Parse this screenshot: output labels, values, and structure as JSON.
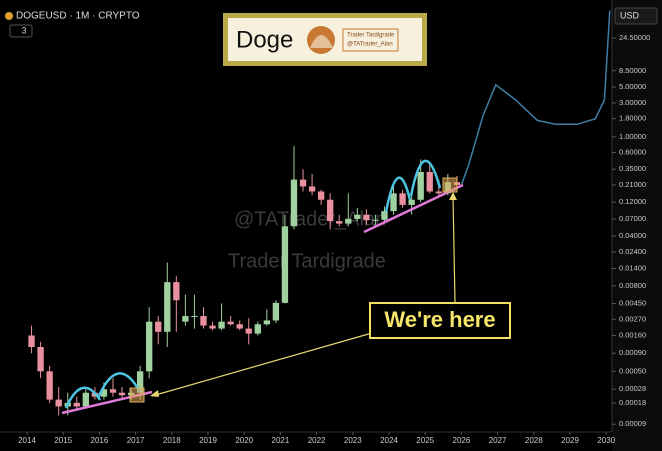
{
  "chart_data": {
    "type": "candlestick",
    "symbol": "DOGEUSD · 1M · CRYPTO",
    "indicator_count": 3,
    "currency": "USD",
    "logo": {
      "name": "Doge",
      "line1": "Trader Tardigrade",
      "line2": "@TATrader_Alan"
    },
    "annotations": {
      "callout": "We're here",
      "watermark_handle": "@TATrader_Alan",
      "watermark_name": "Trader Tardigrade"
    },
    "log_scale": true,
    "up_color": "#9fd29f",
    "down_color": "#e8909e",
    "x": [
      2014.125,
      2014.375,
      2014.625,
      2014.875,
      2015.125,
      2015.375,
      2015.625,
      2015.875,
      2016.125,
      2016.375,
      2016.625,
      2016.875,
      2017.125,
      2017.375,
      2017.625,
      2017.875,
      2018.125,
      2018.375,
      2018.625,
      2018.875,
      2019.125,
      2019.375,
      2019.625,
      2019.875,
      2020.125,
      2020.375,
      2020.625,
      2020.875,
      2021.125,
      2021.375,
      2021.625,
      2021.875,
      2022.125,
      2022.375,
      2022.625,
      2022.875,
      2023.125,
      2023.375,
      2023.625,
      2023.875,
      2024.125,
      2024.375,
      2024.625,
      2024.875,
      2025.125,
      2025.375,
      2025.625,
      2025.875
    ],
    "open": [
      0.0016,
      0.0011,
      0.0005,
      0.0002,
      0.00016,
      0.00018,
      0.00016,
      0.00025,
      0.00022,
      0.00028,
      0.00025,
      0.00023,
      0.00025,
      0.0005,
      0.0025,
      0.0018,
      0.009,
      0.0025,
      0.003,
      0.003,
      0.0022,
      0.002,
      0.0025,
      0.0023,
      0.002,
      0.0017,
      0.0023,
      0.0026,
      0.0046,
      0.055,
      0.25,
      0.2,
      0.17,
      0.13,
      0.065,
      0.06,
      0.07,
      0.08,
      0.067,
      0.068,
      0.09,
      0.16,
      0.11,
      0.13,
      0.32,
      0.17,
      0.16,
      0.23
    ],
    "high": [
      0.0022,
      0.0013,
      0.0006,
      0.0003,
      0.00025,
      0.00022,
      0.0003,
      0.0003,
      0.00035,
      0.0004,
      0.0003,
      0.00028,
      0.0006,
      0.004,
      0.003,
      0.017,
      0.011,
      0.006,
      0.006,
      0.004,
      0.0025,
      0.0045,
      0.003,
      0.0026,
      0.0028,
      0.0025,
      0.0037,
      0.005,
      0.08,
      0.74,
      0.35,
      0.3,
      0.18,
      0.16,
      0.08,
      0.16,
      0.1,
      0.095,
      0.08,
      0.105,
      0.23,
      0.18,
      0.15,
      0.48,
      0.43,
      0.25,
      0.3,
      0.28
    ],
    "low": [
      0.0009,
      0.0004,
      0.00018,
      0.00012,
      0.00012,
      0.00014,
      0.00015,
      0.0002,
      0.0002,
      0.00022,
      0.0002,
      0.0002,
      0.0002,
      0.0004,
      0.0012,
      0.0011,
      0.0018,
      0.0022,
      0.002,
      0.002,
      0.0019,
      0.0019,
      0.0022,
      0.0019,
      0.0012,
      0.0016,
      0.0022,
      0.0024,
      0.0045,
      0.05,
      0.17,
      0.15,
      0.11,
      0.05,
      0.055,
      0.055,
      0.065,
      0.057,
      0.055,
      0.06,
      0.08,
      0.1,
      0.08,
      0.12,
      0.16,
      0.14,
      0.15,
      0.18
    ],
    "close": [
      0.0011,
      0.0005,
      0.0002,
      0.00016,
      0.00018,
      0.00016,
      0.00025,
      0.00022,
      0.00028,
      0.00025,
      0.00023,
      0.00025,
      0.0005,
      0.0025,
      0.0018,
      0.009,
      0.005,
      0.003,
      0.003,
      0.0022,
      0.002,
      0.0025,
      0.0023,
      0.002,
      0.0017,
      0.0023,
      0.0026,
      0.0046,
      0.055,
      0.25,
      0.2,
      0.17,
      0.13,
      0.065,
      0.06,
      0.07,
      0.08,
      0.067,
      0.068,
      0.09,
      0.16,
      0.11,
      0.13,
      0.32,
      0.17,
      0.16,
      0.23,
      0.21
    ],
    "projection": {
      "color": "#3f7ea6",
      "x": [
        2026.0,
        2026.2,
        2026.6,
        2026.95,
        2027.5,
        2028.1,
        2028.6,
        2029.2,
        2029.7,
        2029.95,
        2030.1
      ],
      "values": [
        0.21,
        0.4,
        2.0,
        5.4,
        3.3,
        1.7,
        1.5,
        1.5,
        1.8,
        3.3,
        60
      ]
    },
    "xlim": [
      2013.53,
      2030.16
    ],
    "xticks": [
      2014,
      2015,
      2016,
      2017,
      2018,
      2019,
      2020,
      2021,
      2022,
      2023,
      2024,
      2025,
      2026,
      2027,
      2028,
      2029,
      2030
    ],
    "ylim": [
      5.4e-05,
      65
    ],
    "yticks": [
      {
        "value": 24.5,
        "label": "24.50000"
      },
      {
        "value": 8.5,
        "label": "8.50000"
      },
      {
        "value": 5,
        "label": "5.00000"
      },
      {
        "value": 3,
        "label": "3.00000"
      },
      {
        "value": 1.8,
        "label": "1.80000"
      },
      {
        "value": 1,
        "label": "1.00000"
      },
      {
        "value": 0.6,
        "label": "0.60000"
      },
      {
        "value": 0.35,
        "label": "0.35000"
      },
      {
        "value": 0.21,
        "label": "0.21000"
      },
      {
        "value": 0.12,
        "label": "0.12000"
      },
      {
        "value": 0.07,
        "label": "0.07000"
      },
      {
        "value": 0.04,
        "label": "0.04000"
      },
      {
        "value": 0.024,
        "label": "0.02400"
      },
      {
        "value": 0.014,
        "label": "0.01400"
      },
      {
        "value": 0.008,
        "label": "0.00800"
      },
      {
        "value": 0.0045,
        "label": "0.00450"
      },
      {
        "value": 0.0027,
        "label": "0.00270"
      },
      {
        "value": 0.0016,
        "label": "0.00160"
      },
      {
        "value": 0.0009,
        "label": "0.00090"
      },
      {
        "value": 0.0005,
        "label": "0.00050"
      },
      {
        "value": 0.00028,
        "label": "0.00028"
      },
      {
        "value": 0.00018,
        "label": "0.00018"
      },
      {
        "value": 9e-05,
        "label": "0.00009"
      }
    ]
  }
}
